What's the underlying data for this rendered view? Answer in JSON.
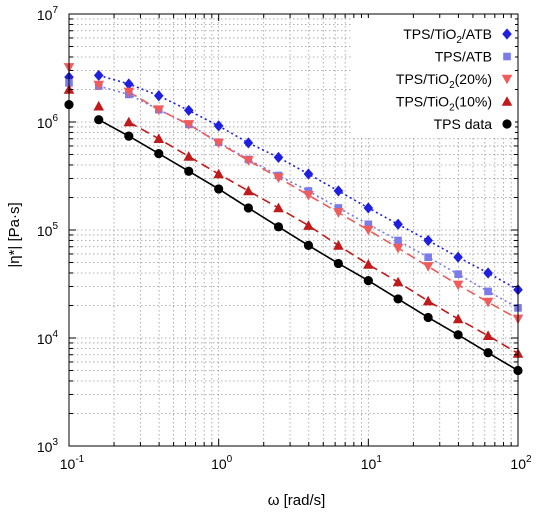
{
  "chart_data": {
    "type": "scatter",
    "xlabel": "ω [rad/s]",
    "ylabel": "|η*| [Pa·s]",
    "xscale": "log",
    "yscale": "log",
    "xlim": [
      0.1,
      100
    ],
    "ylim": [
      1000,
      10000000
    ],
    "x_ticks": [
      {
        "base": "10",
        "exp": "-1"
      },
      {
        "base": "10",
        "exp": "0"
      },
      {
        "base": "10",
        "exp": "1"
      },
      {
        "base": "10",
        "exp": "2"
      }
    ],
    "y_ticks": [
      {
        "base": "10",
        "exp": "3"
      },
      {
        "base": "10",
        "exp": "4"
      },
      {
        "base": "10",
        "exp": "5"
      },
      {
        "base": "10",
        "exp": "6"
      },
      {
        "base": "10",
        "exp": "7"
      }
    ],
    "grid": true,
    "legend_position": "top-right",
    "series": [
      {
        "name": "TPS/TiO2/ATB",
        "label_parts": [
          "TPS/TiO",
          "2",
          "/ATB"
        ],
        "marker": "diamond",
        "color": "#1f1fe0",
        "line": "dotted",
        "fit_from": 1,
        "x": [
          0.1,
          0.158,
          0.251,
          0.398,
          0.631,
          1,
          1.58,
          2.51,
          3.98,
          6.31,
          10,
          15.8,
          25.1,
          39.8,
          63.1,
          100
        ],
        "y": [
          2600000,
          2700000,
          2250000,
          1750000,
          1280000,
          920000,
          640000,
          470000,
          330000,
          230000,
          160000,
          113000,
          80000,
          56000,
          40000,
          28000
        ]
      },
      {
        "name": "TPS/ATB",
        "label_parts": [
          "TPS/ATB"
        ],
        "marker": "square",
        "color": "#7b7bea",
        "line": "dotted",
        "fit_from": 1,
        "x": [
          0.1,
          0.158,
          0.251,
          0.398,
          0.631,
          1,
          1.58,
          2.51,
          3.98,
          6.31,
          10,
          15.8,
          25.1,
          39.8,
          63.1,
          100
        ],
        "y": [
          2300000,
          2150000,
          1800000,
          1300000,
          950000,
          650000,
          450000,
          320000,
          230000,
          160000,
          113000,
          80000,
          56000,
          39000,
          27000,
          19000
        ]
      },
      {
        "name": "TPS/TiO2(20%)",
        "label_parts": [
          "TPS/TiO",
          "2",
          "(20%)"
        ],
        "marker": "triangle-down",
        "color": "#f05b5b",
        "line": "dashed",
        "fit_from": 2,
        "x": [
          0.1,
          0.158,
          0.251,
          0.398,
          0.631,
          1,
          1.58,
          2.51,
          3.98,
          6.31,
          10,
          15.8,
          25.1,
          39.8,
          63.1,
          100
        ],
        "y": [
          3200000,
          2200000,
          1900000,
          1300000,
          950000,
          640000,
          440000,
          305000,
          210000,
          145000,
          100000,
          68000,
          46000,
          31000,
          21500,
          15000
        ]
      },
      {
        "name": "TPS/TiO2(10%)",
        "label_parts": [
          "TPS/TiO",
          "2",
          "(10%)"
        ],
        "marker": "triangle-up",
        "color": "#c01a1a",
        "line": "dashed",
        "fit_from": 2,
        "x": [
          0.1,
          0.158,
          0.251,
          0.398,
          0.631,
          1,
          1.58,
          2.51,
          3.98,
          6.31,
          10,
          15.8,
          25.1,
          39.8,
          63.1,
          100
        ],
        "y": [
          2000000,
          1400000,
          1000000,
          700000,
          480000,
          330000,
          230000,
          160000,
          110000,
          72000,
          48000,
          33000,
          22000,
          15000,
          10500,
          7200
        ]
      },
      {
        "name": "TPS data",
        "label_parts": [
          "TPS data"
        ],
        "marker": "circle",
        "color": "#000000",
        "line": "solid",
        "fit_from": 1,
        "x": [
          0.1,
          0.158,
          0.251,
          0.398,
          0.631,
          1,
          1.58,
          2.51,
          3.98,
          6.31,
          10,
          15.8,
          25.1,
          39.8,
          63.1,
          100
        ],
        "y": [
          1450000,
          1050000,
          740000,
          510000,
          350000,
          240000,
          160000,
          107000,
          72000,
          49000,
          34000,
          23000,
          15500,
          10700,
          7300,
          5000
        ]
      }
    ]
  }
}
